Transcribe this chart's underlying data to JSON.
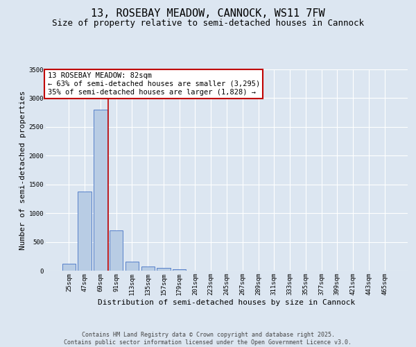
{
  "title_line1": "13, ROSEBAY MEADOW, CANNOCK, WS11 7FW",
  "title_line2": "Size of property relative to semi-detached houses in Cannock",
  "xlabel": "Distribution of semi-detached houses by size in Cannock",
  "ylabel": "Number of semi-detached properties",
  "categories": [
    "25sqm",
    "47sqm",
    "69sqm",
    "91sqm",
    "113sqm",
    "135sqm",
    "157sqm",
    "179sqm",
    "201sqm",
    "223sqm",
    "245sqm",
    "267sqm",
    "289sqm",
    "311sqm",
    "333sqm",
    "355sqm",
    "377sqm",
    "399sqm",
    "421sqm",
    "443sqm",
    "465sqm"
  ],
  "values": [
    120,
    1370,
    2800,
    700,
    155,
    75,
    50,
    30,
    5,
    0,
    0,
    0,
    0,
    0,
    0,
    0,
    0,
    0,
    0,
    0,
    0
  ],
  "bar_color": "#b8cce4",
  "bar_edge_color": "#4472c4",
  "background_color": "#dce6f1",
  "grid_color": "#ffffff",
  "vline_x_index": 2.5,
  "vline_color": "#c00000",
  "annotation_text": "13 ROSEBAY MEADOW: 82sqm\n← 63% of semi-detached houses are smaller (3,295)\n35% of semi-detached houses are larger (1,828) →",
  "annotation_box_color": "#ffffff",
  "annotation_box_edge": "#c00000",
  "ylim": [
    0,
    3500
  ],
  "yticks": [
    0,
    500,
    1000,
    1500,
    2000,
    2500,
    3000,
    3500
  ],
  "footer_line1": "Contains HM Land Registry data © Crown copyright and database right 2025.",
  "footer_line2": "Contains public sector information licensed under the Open Government Licence v3.0.",
  "title_fontsize": 11,
  "subtitle_fontsize": 9,
  "axis_label_fontsize": 8,
  "tick_fontsize": 6.5,
  "annotation_fontsize": 7.5,
  "footer_fontsize": 6
}
